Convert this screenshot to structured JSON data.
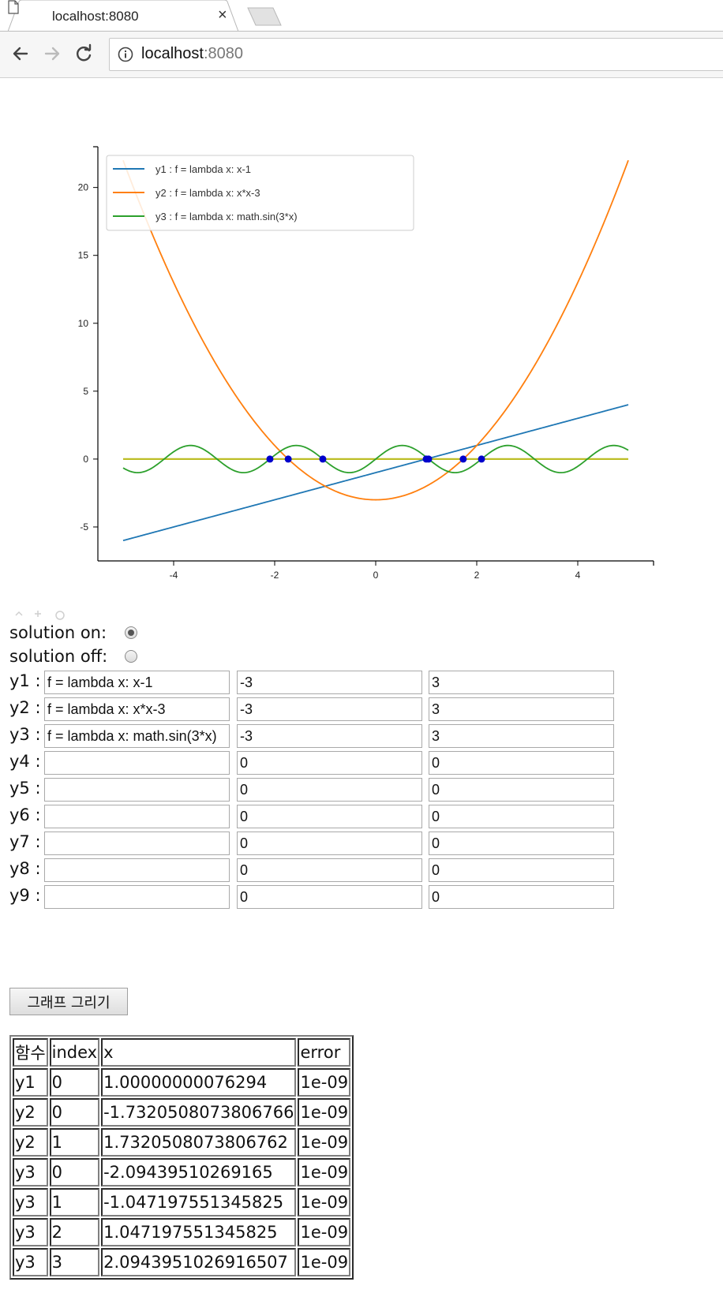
{
  "browser": {
    "tab_title": "localhost:8080",
    "tab_close": "×",
    "url_host": "localhost",
    "url_port": ":8080"
  },
  "chart_data": {
    "type": "line",
    "title": "",
    "xlim": [
      -5.5,
      5.5
    ],
    "ylim": [
      -7.5,
      23
    ],
    "x_ticks": [
      -4,
      -2,
      0,
      2,
      4
    ],
    "y_ticks": [
      -5,
      0,
      5,
      10,
      15,
      20
    ],
    "x_range": [
      -5,
      5
    ],
    "series": [
      {
        "name": "y1 : f = lambda x: x-1",
        "expr": "x-1",
        "color": "#1f77b4"
      },
      {
        "name": "y2 : f = lambda x: x*x-3",
        "expr": "x*x-3",
        "color": "#ff7f0e"
      },
      {
        "name": "y3 : f = lambda x: math.sin(3*x)",
        "expr": "sin(3*x)",
        "color": "#2ca02c"
      }
    ],
    "zero_line_color": "#bcbd22",
    "solution_points": {
      "color": "#0000cc",
      "x": [
        1.00000000076294,
        -1.7320508073806766,
        1.7320508073806762,
        -2.09439510269165,
        -1.047197551345825,
        1.047197551345825,
        2.0943951026916507
      ]
    },
    "legend_position": "top-left"
  },
  "controls": {
    "solution_on_label": "solution on:",
    "solution_off_label": "solution off:",
    "solution_on": true,
    "rows": [
      {
        "label": "y1 :",
        "func": "f = lambda x: x-1",
        "min": "-3",
        "max": "3"
      },
      {
        "label": "y2 :",
        "func": "f = lambda x: x*x-3",
        "min": "-3",
        "max": "3"
      },
      {
        "label": "y3 :",
        "func": "f = lambda x: math.sin(3*x)",
        "min": "-3",
        "max": "3"
      },
      {
        "label": "y4 :",
        "func": "",
        "min": "0",
        "max": "0"
      },
      {
        "label": "y5 :",
        "func": "",
        "min": "0",
        "max": "0"
      },
      {
        "label": "y6 :",
        "func": "",
        "min": "0",
        "max": "0"
      },
      {
        "label": "y7 :",
        "func": "",
        "min": "0",
        "max": "0"
      },
      {
        "label": "y8 :",
        "func": "",
        "min": "0",
        "max": "0"
      },
      {
        "label": "y9 :",
        "func": "",
        "min": "0",
        "max": "0"
      }
    ],
    "draw_button_label": "그래프 그리기"
  },
  "results": {
    "headers": [
      "함수",
      "index",
      "x",
      "error"
    ],
    "rows": [
      [
        "y1",
        "0",
        "1.00000000076294",
        "1e-09"
      ],
      [
        "y2",
        "0",
        "-1.7320508073806766",
        "1e-09"
      ],
      [
        "y2",
        "1",
        "1.7320508073806762",
        "1e-09"
      ],
      [
        "y3",
        "0",
        "-2.09439510269165",
        "1e-09"
      ],
      [
        "y3",
        "1",
        "-1.047197551345825",
        "1e-09"
      ],
      [
        "y3",
        "2",
        "1.047197551345825",
        "1e-09"
      ],
      [
        "y3",
        "3",
        "2.0943951026916507",
        "1e-09"
      ]
    ]
  }
}
